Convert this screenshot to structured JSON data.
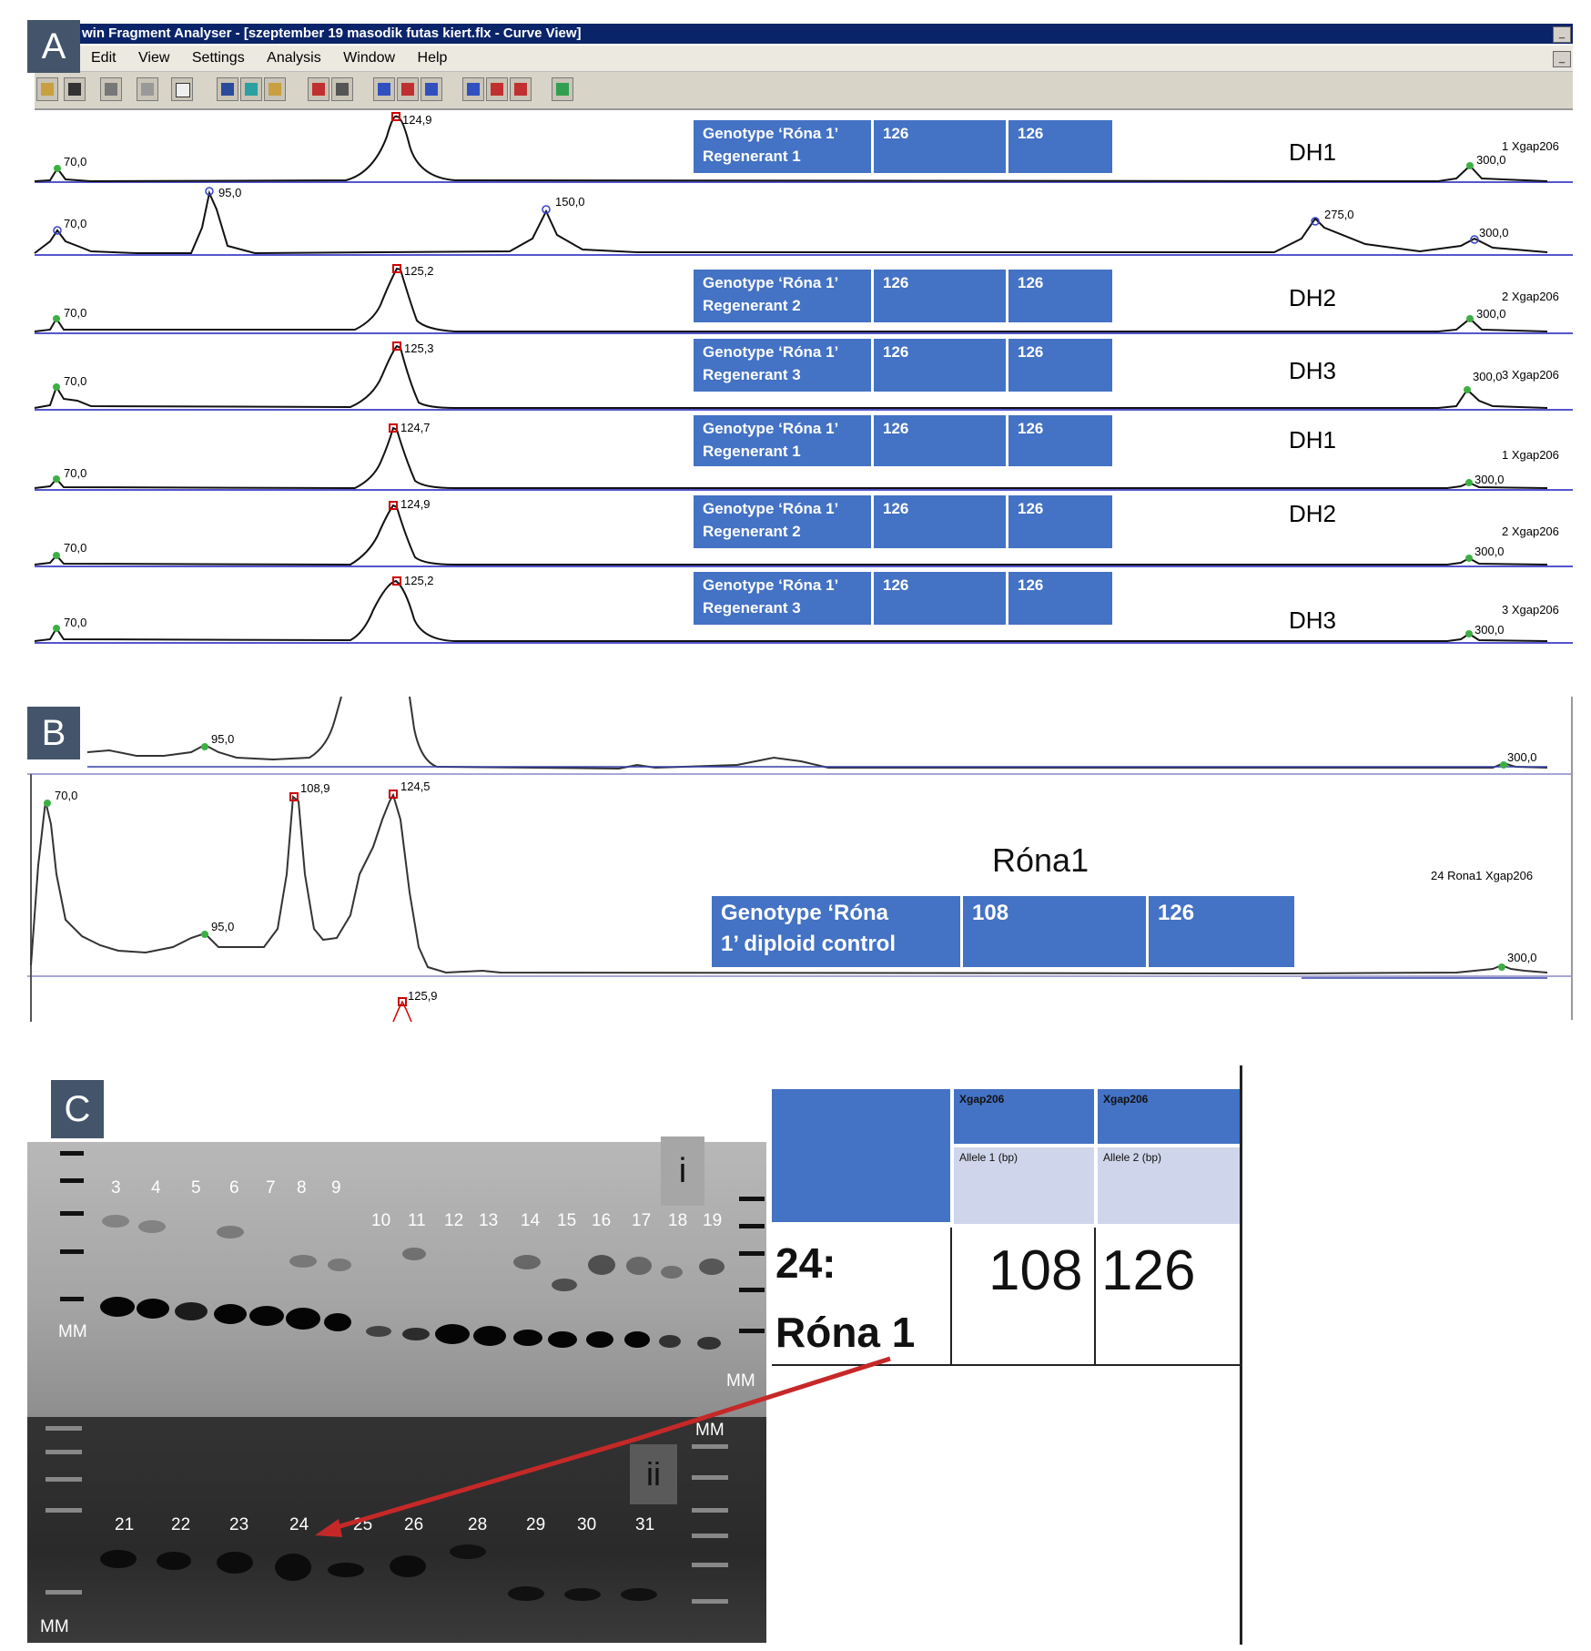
{
  "window": {
    "title": "win Fragment Analyser - [szeptember 19 masodik futas kiert.flx - Curve View]",
    "menu": [
      "Edit",
      "View",
      "Settings",
      "Analysis",
      "Window",
      "Help"
    ]
  },
  "panels": {
    "a": "A",
    "b": "B",
    "c": "C"
  },
  "traces_a": [
    {
      "peaks": [
        "70,0",
        "124,9",
        "300,0"
      ],
      "geno": [
        "Genotype ‘Róna 1’",
        "Regenerant 1"
      ],
      "a1": "126",
      "a2": "126",
      "dh": "DH1",
      "xgap": "1 Xgap206"
    },
    {
      "peaks": [
        "70,0",
        "95,0",
        "150,0",
        "275,0",
        "300,0"
      ]
    },
    {
      "peaks": [
        "70,0",
        "125,2",
        "300,0"
      ],
      "geno": [
        "Genotype ‘Róna 1’",
        "Regenerant 2"
      ],
      "a1": "126",
      "a2": "126",
      "dh": "DH2",
      "xgap": "2 Xgap206"
    },
    {
      "peaks": [
        "70,0",
        "125,3",
        "300,0"
      ],
      "geno": [
        "Genotype ‘Róna 1’",
        "Regenerant 3"
      ],
      "a1": "126",
      "a2": "126",
      "dh": "DH3",
      "xgap": "3 Xgap206"
    },
    {
      "peaks": [
        "70,0",
        "124,7",
        "300,0"
      ],
      "geno": [
        "Genotype ‘Róna 1’",
        "Regenerant 1"
      ],
      "a1": "126",
      "a2": "126",
      "dh": "DH1",
      "xgap": "1 Xgap206"
    },
    {
      "peaks": [
        "70,0",
        "124,9",
        "300,0"
      ],
      "geno": [
        "Genotype ‘Róna 1’",
        "Regenerant 2"
      ],
      "a1": "126",
      "a2": "126",
      "dh": "DH2",
      "xgap": "2 Xgap206"
    },
    {
      "peaks": [
        "70,0",
        "125,2",
        "300,0"
      ],
      "geno": [
        "Genotype ‘Róna 1’",
        "Regenerant 3"
      ],
      "a1": "126",
      "a2": "126",
      "dh": "DH3",
      "xgap": "3 Xgap206"
    }
  ],
  "panel_b": {
    "top_peaks": [
      "95,0",
      "300,0"
    ],
    "peaks": [
      "70,0",
      "108,9",
      "124,5",
      "95,0",
      "300,0"
    ],
    "bottom_peak": "125,9",
    "name": "Róna1",
    "geno": [
      "Genotype ‘Róna",
      "1’ diploid control"
    ],
    "a1": "108",
    "a2": "126",
    "xgap": "24 Rona1 Xgap206"
  },
  "panel_c": {
    "gel_i_label": "i",
    "gel_ii_label": "ii",
    "lanes_i_top": [
      "3",
      "4",
      "5",
      "6",
      "7",
      "8",
      "9"
    ],
    "lanes_i_bottom": [
      "10",
      "11",
      "12",
      "13",
      "14",
      "15",
      "16",
      "17",
      "18",
      "19"
    ],
    "lanes_ii": [
      "21",
      "22",
      "23",
      "24",
      "25",
      "26",
      "28",
      "29",
      "30",
      "31"
    ],
    "mm": "MM",
    "table": {
      "hdr1": "Xgap206",
      "hdr2": "Xgap206",
      "sub1": "Allele 1 (bp)",
      "sub2": "Allele 2 (bp)",
      "sample_line1": "24:",
      "sample_line2": "Róna 1",
      "allele1": "108",
      "allele2": "126"
    }
  }
}
